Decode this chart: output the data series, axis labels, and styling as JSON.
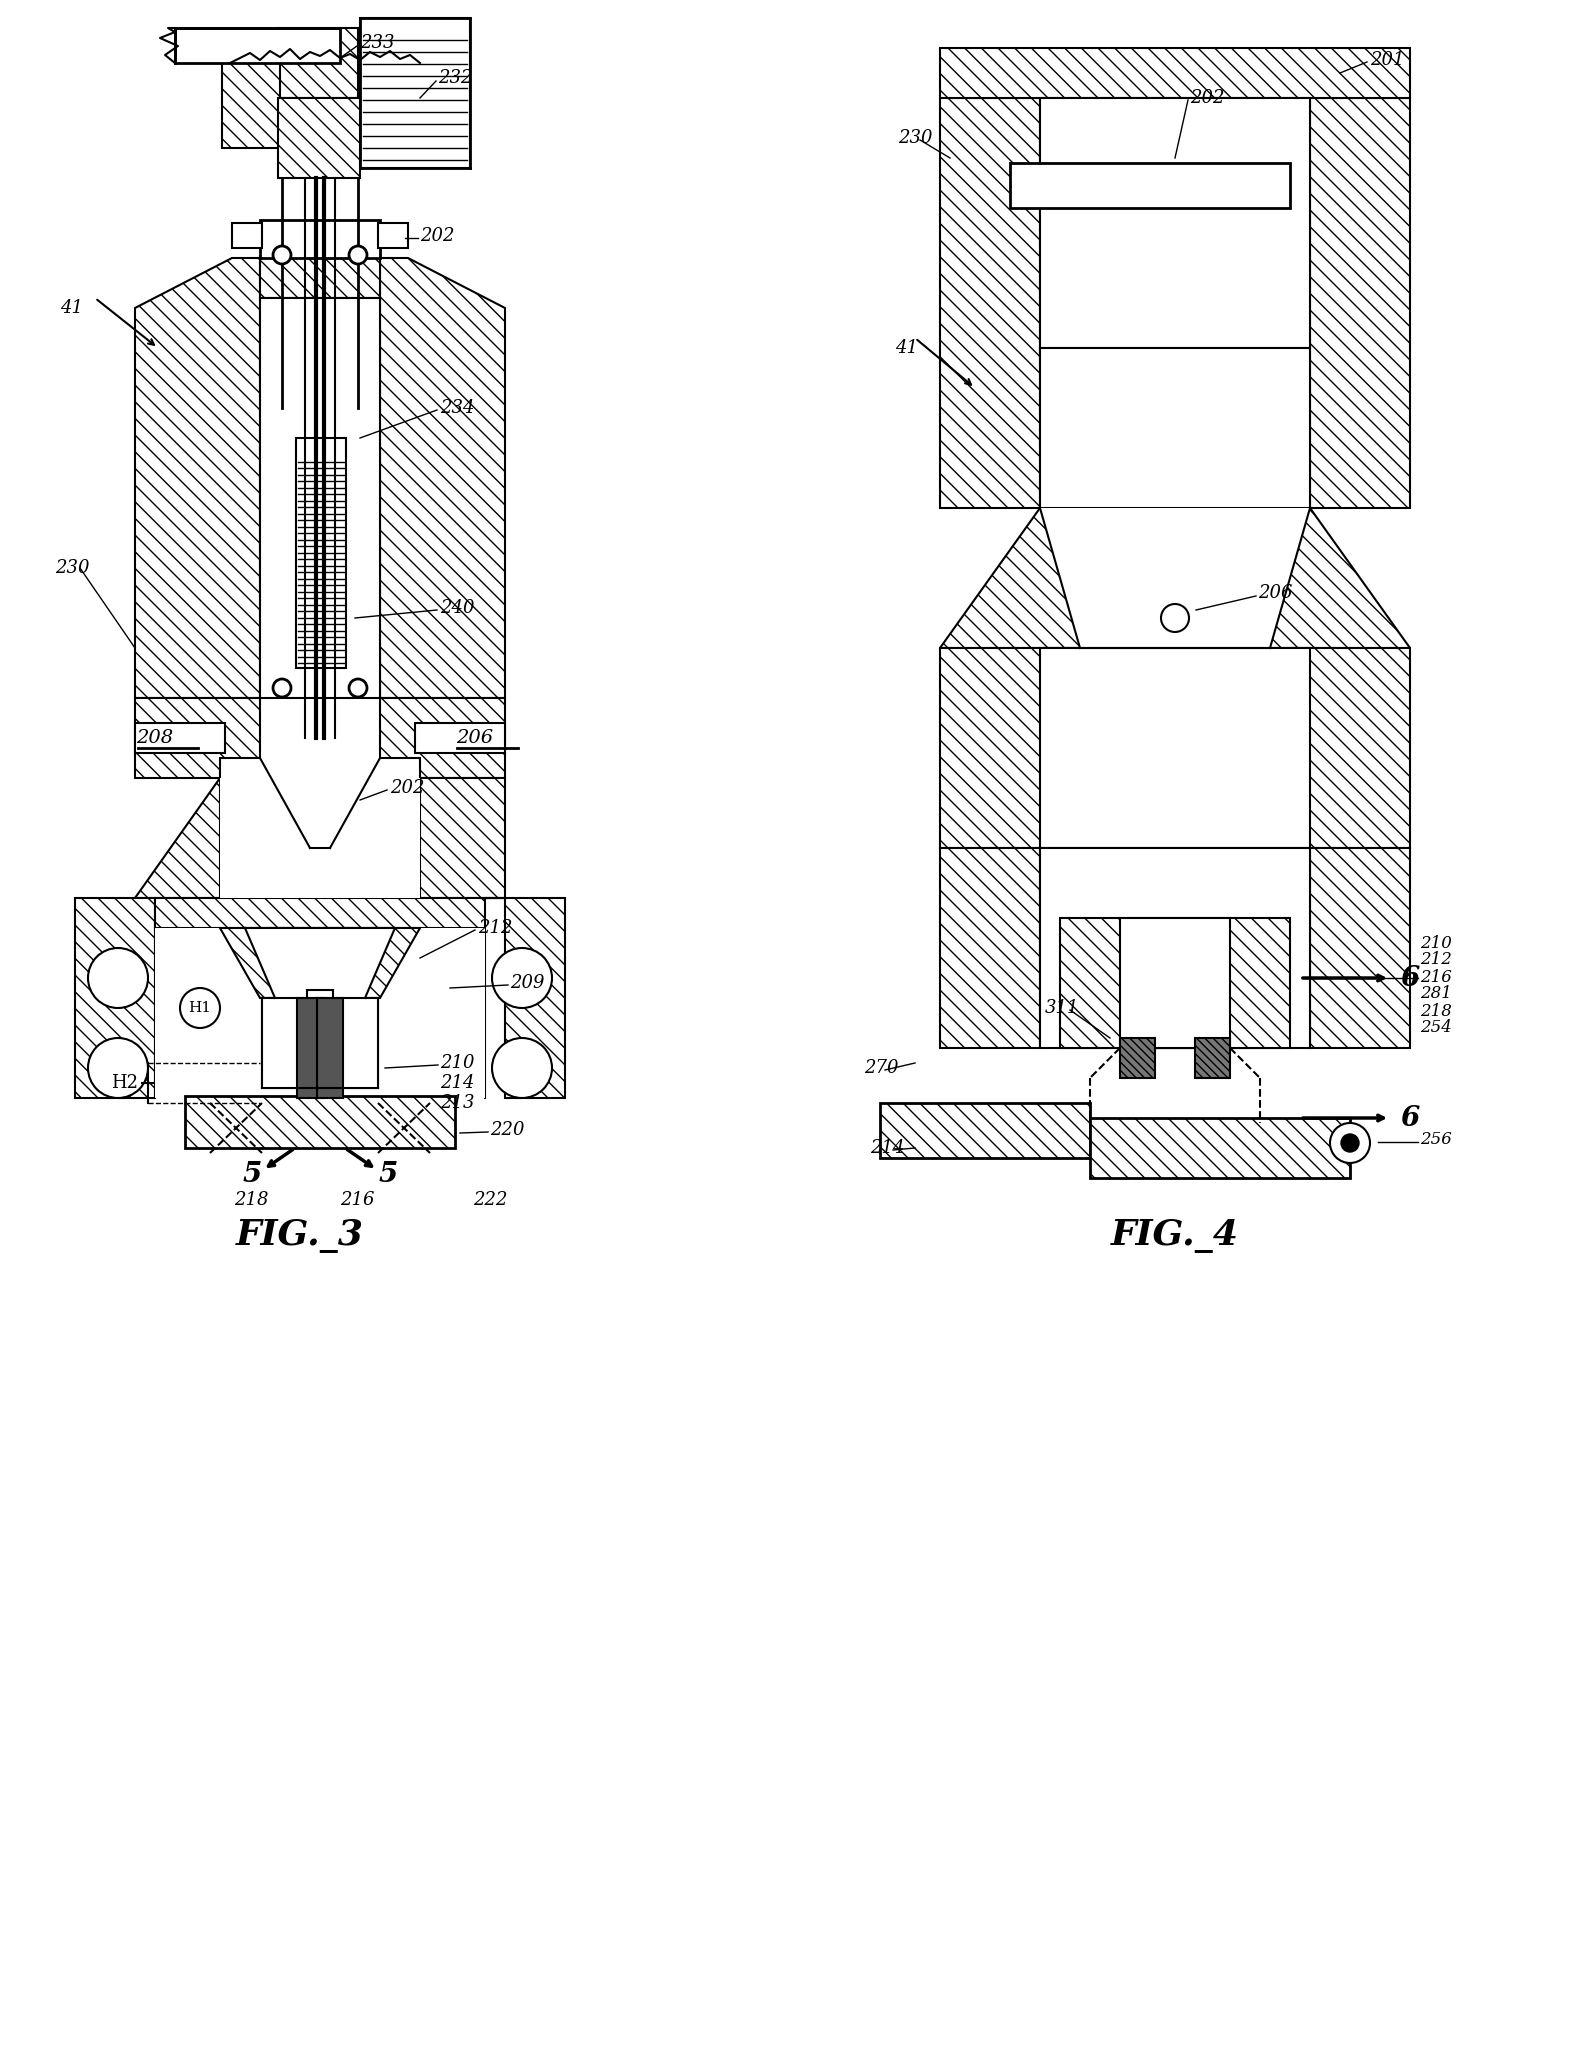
{
  "fig3_caption": "FIG._3",
  "fig4_caption": "FIG._4",
  "bg_color": "#ffffff",
  "fig_width": 15.72,
  "fig_height": 20.48,
  "dpi": 100
}
